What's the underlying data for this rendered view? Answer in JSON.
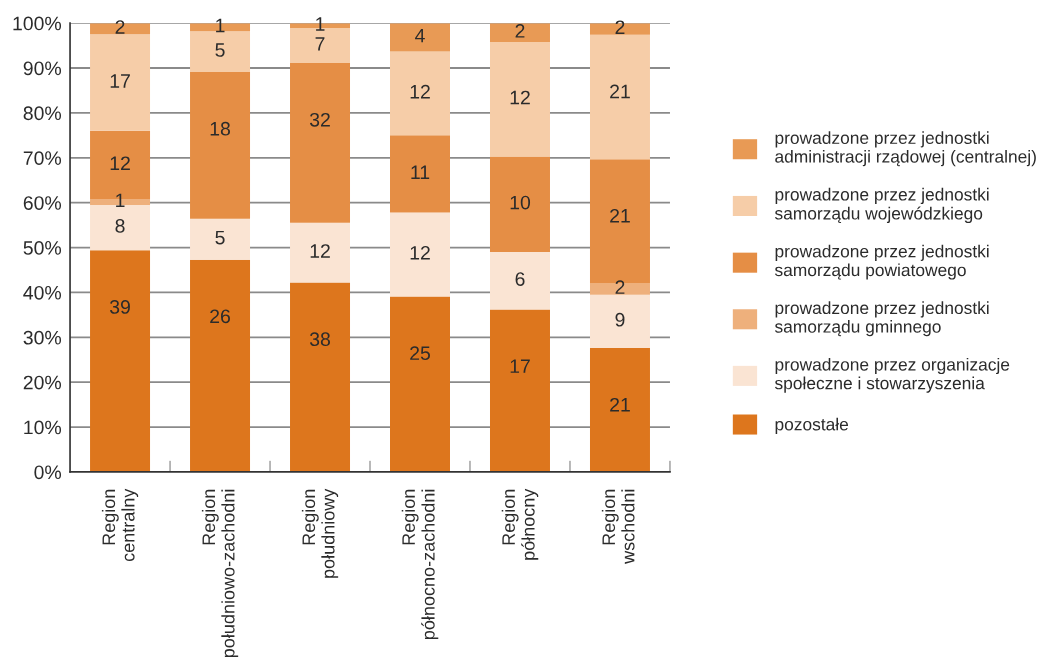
{
  "chart_data": {
    "type": "bar",
    "stacked": true,
    "categories": [
      "Region\ncentralny",
      "Region\npołudniowo-zachodni",
      "Region\npołudniowy",
      "Region\npółnocno-zachodni",
      "Region\npółnocny",
      "Region\nwschodni"
    ],
    "series": [
      {
        "name": "pozostałe",
        "color": "#dd761d",
        "values": [
          49.4,
          47.3,
          42.2,
          39.1,
          36.2,
          27.6
        ]
      },
      {
        "name": "prowadzone przez organizacje\nspołeczne i stowarzyszenia",
        "color": "#fae4d3",
        "values": [
          10.1,
          9.1,
          13.3,
          18.7,
          12.8,
          11.9
        ]
      },
      {
        "name": "prowadzone przez jednostki\nsamorządu gminnego",
        "color": "#eeb07c",
        "values": [
          1.3,
          null,
          null,
          null,
          null,
          2.6
        ]
      },
      {
        "name": "prowadzone przez jednostki\nsamorządu powiatowego",
        "color": "#e58e45",
        "values": [
          15.2,
          32.7,
          35.6,
          17.2,
          21.3,
          27.6
        ]
      },
      {
        "name": "prowadzone przez jednostki\nsamorządu wojewódzkiego",
        "color": "#f6cda8",
        "values": [
          21.5,
          9.1,
          7.8,
          18.7,
          25.5,
          27.7
        ]
      },
      {
        "name": "prowadzone przez jednostki\nadministracji rządowej (centralnej)",
        "color": "#e89a55",
        "values": [
          2.5,
          1.8,
          1.1,
          6.3,
          4.2,
          2.6
        ]
      }
    ],
    "annotations": [
      {
        "text": "39",
        "x": "Region\ncentralny",
        "y": 49.4
      },
      {
        "text": "8",
        "x": "Region\ncentralny",
        "y": 59.5
      },
      {
        "text": "1",
        "x": "Region\ncentralny",
        "y": 60.8
      },
      {
        "text": "12",
        "x": "Region\ncentralny",
        "y": 76.0
      },
      {
        "text": "17",
        "x": "Region\ncentralny",
        "y": 97.5
      },
      {
        "text": "2",
        "x": "Region\ncentralny",
        "y": 100
      },
      {
        "text": "26",
        "x": "Region\npołudniowo-zachodni",
        "y": 47.3
      },
      {
        "text": "5",
        "x": "Region\npołudniowo-zachodni",
        "y": 56.4
      },
      {
        "text": "18",
        "x": "Region\npołudniowo-zachodni",
        "y": 89.1
      },
      {
        "text": "5",
        "x": "Region\npołudniowo-zachodni",
        "y": 98.2
      },
      {
        "text": "1",
        "x": "Region\npołudniowo-zachodni",
        "y": 100
      },
      {
        "text": "38",
        "x": "Region\npołudniowy",
        "y": 42.2
      },
      {
        "text": "12",
        "x": "Region\npołudniowy",
        "y": 55.5
      },
      {
        "text": "32",
        "x": "Region\npołudniowy",
        "y": 91.1
      },
      {
        "text": "7",
        "x": "Region\npołudniowy",
        "y": 98.9
      },
      {
        "text": "1",
        "x": "Region\npołudniowy",
        "y": 100
      },
      {
        "text": "25",
        "x": "Region\npółnocno-zachodni",
        "y": 39.1
      },
      {
        "text": "12",
        "x": "Region\npółnocno-zachodni",
        "y": 57.8
      },
      {
        "text": "11",
        "x": "Region\npółnocno-zachodni",
        "y": 75.0
      },
      {
        "text": "12",
        "x": "Region\npółnocno-zachodni",
        "y": 93.7
      },
      {
        "text": "4",
        "x": "Region\npółnocno-zachodni",
        "y": 100
      },
      {
        "text": "17",
        "x": "Region\npółnocny",
        "y": 36.2
      },
      {
        "text": "6",
        "x": "Region\npółnocny",
        "y": 49.0
      },
      {
        "text": "10",
        "x": "Region\npółnocny",
        "y": 70.3
      },
      {
        "text": "12",
        "x": "Region\npółnocny",
        "y": 95.8
      },
      {
        "text": "2",
        "x": "Region\npółnocny",
        "y": 100
      },
      {
        "text": "21",
        "x": "Region\nwschodni",
        "y": 27.6
      },
      {
        "text": "9",
        "x": "Region\nwschodni",
        "y": 39.5
      },
      {
        "text": "2",
        "x": "Region\nwschodni",
        "y": 42.1
      },
      {
        "text": "21",
        "x": "Region\nwschodni",
        "y": 69.7
      },
      {
        "text": "21",
        "x": "Region\nwschodni",
        "y": 97.4
      },
      {
        "text": "2",
        "x": "Region\nwschodni",
        "y": 100
      }
    ],
    "ylim": [
      0,
      100
    ],
    "yticks": [
      {
        "value": 0,
        "label": "0%"
      },
      {
        "value": 10,
        "label": "10%"
      },
      {
        "value": 20,
        "label": "20%"
      },
      {
        "value": 30,
        "label": "30%"
      },
      {
        "value": 40,
        "label": "40%"
      },
      {
        "value": 50,
        "label": "50%"
      },
      {
        "value": 60,
        "label": "60%"
      },
      {
        "value": 70,
        "label": "70%"
      },
      {
        "value": 80,
        "label": "80%"
      },
      {
        "value": 90,
        "label": "90%"
      },
      {
        "value": 100,
        "label": "100%"
      }
    ],
    "grid": "y",
    "legend": "right"
  }
}
